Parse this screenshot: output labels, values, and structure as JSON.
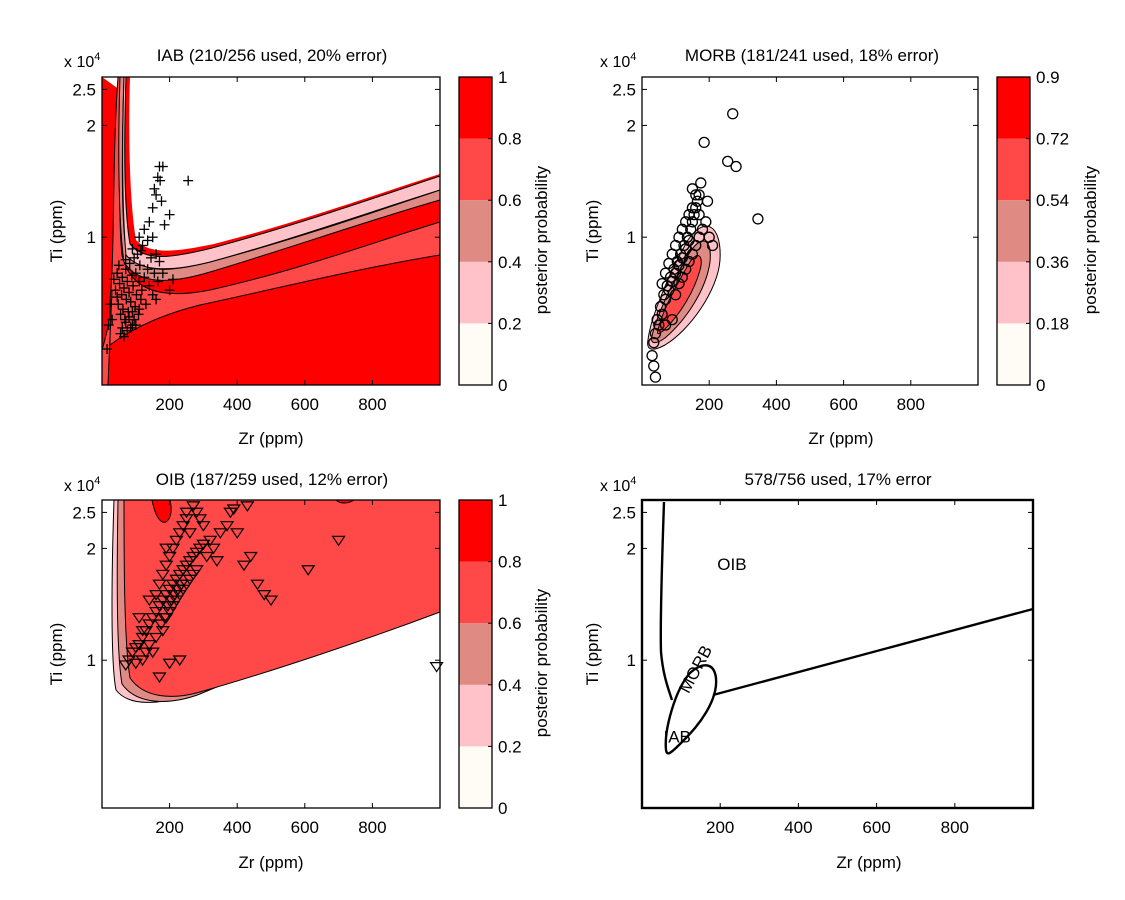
{
  "figure": {
    "background": "#ffffff"
  },
  "colors": {
    "bins": [
      "#fffbf5",
      "#ffc2c8",
      "#e08a84",
      "#ff4848",
      "#ff0000"
    ],
    "line": "#000000"
  },
  "chart_data": [
    {
      "type": "contour",
      "title": "IAB (210/256 used, 20% error)",
      "xlabel": "Zr (ppm)",
      "ylabel": "Ti (ppm)",
      "y_exponent_label": "x 10",
      "y_exponent": "4",
      "xlim": [
        0,
        1000
      ],
      "ylim": [
        0.4,
        2.7
      ],
      "xticks": [
        {
          "value": 200,
          "label": "200"
        },
        {
          "value": 400,
          "label": "400"
        },
        {
          "value": 600,
          "label": "600"
        },
        {
          "value": 800,
          "label": "800"
        }
      ],
      "yticks": [
        {
          "value": 1,
          "label": "1"
        },
        {
          "value": 2,
          "label": "2"
        },
        {
          "value": 2.5,
          "label": "2.5"
        }
      ],
      "colorbar": {
        "label": "posterior probability",
        "ticks": [
          "0",
          "0.2",
          "0.4",
          "0.6",
          "0.8",
          "1"
        ]
      },
      "marker": "plus",
      "points": [
        [
          40,
          0.72
        ],
        [
          45,
          0.69
        ],
        [
          48,
          0.66
        ],
        [
          52,
          0.75
        ],
        [
          55,
          0.62
        ],
        [
          58,
          0.7
        ],
        [
          60,
          0.78
        ],
        [
          62,
          0.64
        ],
        [
          65,
          0.73
        ],
        [
          68,
          0.6
        ],
        [
          70,
          0.82
        ],
        [
          72,
          0.68
        ],
        [
          75,
          0.76
        ],
        [
          78,
          0.63
        ],
        [
          80,
          0.71
        ],
        [
          82,
          0.85
        ],
        [
          85,
          0.67
        ],
        [
          88,
          0.79
        ],
        [
          90,
          0.58
        ],
        [
          92,
          0.74
        ],
        [
          95,
          0.88
        ],
        [
          98,
          0.65
        ],
        [
          100,
          0.8
        ],
        [
          102,
          0.7
        ],
        [
          105,
          0.9
        ],
        [
          108,
          0.62
        ],
        [
          110,
          0.76
        ],
        [
          112,
          0.84
        ],
        [
          115,
          0.68
        ],
        [
          118,
          0.72
        ],
        [
          120,
          0.95
        ],
        [
          125,
          0.78
        ],
        [
          130,
          0.66
        ],
        [
          135,
          0.82
        ],
        [
          140,
          0.74
        ],
        [
          145,
          0.88
        ],
        [
          150,
          0.7
        ],
        [
          155,
          0.8
        ],
        [
          160,
          0.68
        ],
        [
          165,
          0.76
        ],
        [
          170,
          0.86
        ],
        [
          55,
          0.55
        ],
        [
          60,
          0.57
        ],
        [
          65,
          0.54
        ],
        [
          70,
          0.59
        ],
        [
          75,
          0.56
        ],
        [
          80,
          0.61
        ],
        [
          85,
          0.57
        ],
        [
          90,
          0.63
        ],
        [
          95,
          0.6
        ],
        [
          100,
          0.58
        ],
        [
          110,
          0.64
        ],
        [
          30,
          0.6
        ],
        [
          20,
          0.58
        ],
        [
          15,
          0.5
        ],
        [
          25,
          0.66
        ],
        [
          35,
          0.77
        ],
        [
          45,
          0.8
        ],
        [
          50,
          0.84
        ],
        [
          70,
          0.87
        ],
        [
          90,
          0.93
        ],
        [
          110,
          1.0
        ],
        [
          125,
          1.05
        ],
        [
          140,
          1.1
        ],
        [
          150,
          1.0
        ],
        [
          160,
          0.9
        ],
        [
          180,
          0.8
        ],
        [
          200,
          0.72
        ],
        [
          210,
          0.77
        ],
        [
          155,
          1.35
        ],
        [
          160,
          1.3
        ],
        [
          165,
          1.45
        ],
        [
          170,
          1.55
        ],
        [
          180,
          1.55
        ],
        [
          172,
          1.42
        ],
        [
          176,
          1.25
        ],
        [
          200,
          1.15
        ],
        [
          255,
          1.42
        ],
        [
          150,
          1.2
        ],
        [
          185,
          1.08
        ],
        [
          135,
          0.98
        ],
        [
          115,
          0.92
        ]
      ]
    },
    {
      "type": "contour",
      "title": "MORB (181/241 used, 18% error)",
      "xlabel": "Zr (ppm)",
      "ylabel": "Ti (ppm)",
      "y_exponent_label": "x 10",
      "y_exponent": "4",
      "xlim": [
        0,
        1000
      ],
      "ylim": [
        0.4,
        2.7
      ],
      "xticks": [
        {
          "value": 200,
          "label": "200"
        },
        {
          "value": 400,
          "label": "400"
        },
        {
          "value": 600,
          "label": "600"
        },
        {
          "value": 800,
          "label": "800"
        }
      ],
      "yticks": [
        {
          "value": 1,
          "label": "1"
        },
        {
          "value": 2,
          "label": "2"
        },
        {
          "value": 2.5,
          "label": "2.5"
        }
      ],
      "colorbar": {
        "label": "posterior probability",
        "ticks": [
          "0",
          "0.18",
          "0.36",
          "0.54",
          "0.72",
          "0.9"
        ]
      },
      "marker": "circle",
      "points": [
        [
          30,
          0.48
        ],
        [
          35,
          0.52
        ],
        [
          40,
          0.55
        ],
        [
          45,
          0.6
        ],
        [
          50,
          0.58
        ],
        [
          55,
          0.65
        ],
        [
          60,
          0.62
        ],
        [
          65,
          0.7
        ],
        [
          70,
          0.68
        ],
        [
          75,
          0.74
        ],
        [
          80,
          0.72
        ],
        [
          85,
          0.78
        ],
        [
          90,
          0.76
        ],
        [
          95,
          0.82
        ],
        [
          100,
          0.8
        ],
        [
          105,
          0.86
        ],
        [
          110,
          0.84
        ],
        [
          115,
          0.9
        ],
        [
          120,
          0.88
        ],
        [
          125,
          0.95
        ],
        [
          130,
          0.93
        ],
        [
          135,
          1.0
        ],
        [
          140,
          0.98
        ],
        [
          145,
          1.05
        ],
        [
          150,
          1.1
        ],
        [
          155,
          1.15
        ],
        [
          160,
          1.2
        ],
        [
          165,
          1.25
        ],
        [
          170,
          1.3
        ],
        [
          60,
          0.75
        ],
        [
          70,
          0.8
        ],
        [
          80,
          0.85
        ],
        [
          90,
          0.9
        ],
        [
          100,
          0.95
        ],
        [
          110,
          1.0
        ],
        [
          120,
          1.05
        ],
        [
          130,
          1.1
        ],
        [
          140,
          1.15
        ],
        [
          150,
          1.2
        ],
        [
          160,
          1.3
        ],
        [
          100,
          0.7
        ],
        [
          110,
          0.75
        ],
        [
          120,
          0.78
        ],
        [
          130,
          0.82
        ],
        [
          140,
          0.86
        ],
        [
          150,
          0.9
        ],
        [
          160,
          0.95
        ],
        [
          170,
          1.0
        ],
        [
          180,
          1.05
        ],
        [
          190,
          1.1
        ],
        [
          200,
          1.0
        ],
        [
          210,
          0.95
        ],
        [
          195,
          1.25
        ],
        [
          175,
          1.4
        ],
        [
          185,
          1.8
        ],
        [
          255,
          1.6
        ],
        [
          270,
          2.15
        ],
        [
          280,
          1.55
        ],
        [
          345,
          1.12
        ],
        [
          35,
          0.45
        ],
        [
          40,
          0.42
        ],
        [
          70,
          0.58
        ],
        [
          90,
          0.6
        ],
        [
          170,
          1.15
        ],
        [
          150,
          1.35
        ]
      ]
    },
    {
      "type": "contour",
      "title": "OIB (187/259 used, 12% error)",
      "xlabel": "Zr (ppm)",
      "ylabel": "Ti (ppm)",
      "y_exponent_label": "x 10",
      "y_exponent": "4",
      "xlim": [
        0,
        1000
      ],
      "ylim": [
        0.4,
        2.7
      ],
      "xticks": [
        {
          "value": 200,
          "label": "200"
        },
        {
          "value": 400,
          "label": "400"
        },
        {
          "value": 600,
          "label": "600"
        },
        {
          "value": 800,
          "label": "800"
        }
      ],
      "yticks": [
        {
          "value": 1,
          "label": "1"
        },
        {
          "value": 2,
          "label": "2"
        },
        {
          "value": 2.5,
          "label": "2.5"
        }
      ],
      "colorbar": {
        "label": "posterior probability",
        "ticks": [
          "0",
          "0.2",
          "0.4",
          "0.6",
          "0.8",
          "1"
        ]
      },
      "marker": "triangle-down",
      "points": [
        [
          70,
          0.97
        ],
        [
          80,
          1.0
        ],
        [
          90,
          1.05
        ],
        [
          100,
          1.08
        ],
        [
          110,
          1.1
        ],
        [
          120,
          1.15
        ],
        [
          130,
          1.2
        ],
        [
          140,
          1.25
        ],
        [
          150,
          1.3
        ],
        [
          160,
          1.35
        ],
        [
          170,
          1.4
        ],
        [
          180,
          1.45
        ],
        [
          190,
          1.5
        ],
        [
          200,
          1.55
        ],
        [
          210,
          1.6
        ],
        [
          220,
          1.65
        ],
        [
          230,
          1.7
        ],
        [
          240,
          1.75
        ],
        [
          250,
          1.8
        ],
        [
          260,
          1.85
        ],
        [
          270,
          1.9
        ],
        [
          280,
          1.95
        ],
        [
          290,
          2.0
        ],
        [
          300,
          2.05
        ],
        [
          160,
          1.5
        ],
        [
          170,
          1.6
        ],
        [
          180,
          1.7
        ],
        [
          190,
          1.8
        ],
        [
          200,
          1.9
        ],
        [
          210,
          2.0
        ],
        [
          220,
          2.1
        ],
        [
          230,
          2.2
        ],
        [
          240,
          2.3
        ],
        [
          250,
          2.4
        ],
        [
          180,
          1.2
        ],
        [
          190,
          1.3
        ],
        [
          200,
          1.35
        ],
        [
          210,
          1.4
        ],
        [
          220,
          1.45
        ],
        [
          230,
          1.5
        ],
        [
          240,
          1.55
        ],
        [
          250,
          1.6
        ],
        [
          260,
          1.65
        ],
        [
          270,
          1.7
        ],
        [
          280,
          1.75
        ],
        [
          150,
          1.05
        ],
        [
          130,
          1.05
        ],
        [
          120,
          1.0
        ],
        [
          100,
          0.98
        ],
        [
          140,
          1.1
        ],
        [
          160,
          1.15
        ],
        [
          175,
          1.25
        ],
        [
          185,
          1.3
        ],
        [
          195,
          1.4
        ],
        [
          205,
          1.45
        ],
        [
          215,
          1.5
        ],
        [
          225,
          1.55
        ],
        [
          235,
          1.6
        ],
        [
          310,
          1.9
        ],
        [
          320,
          2.1
        ],
        [
          330,
          2.0
        ],
        [
          340,
          1.85
        ],
        [
          350,
          2.2
        ],
        [
          370,
          2.3
        ],
        [
          380,
          2.5
        ],
        [
          390,
          2.55
        ],
        [
          300,
          2.3
        ],
        [
          290,
          2.4
        ],
        [
          280,
          2.5
        ],
        [
          260,
          2.2
        ],
        [
          250,
          2.5
        ],
        [
          270,
          2.6
        ],
        [
          430,
          2.6
        ],
        [
          400,
          2.2
        ],
        [
          420,
          1.8
        ],
        [
          440,
          1.9
        ],
        [
          460,
          1.6
        ],
        [
          480,
          1.5
        ],
        [
          500,
          1.45
        ],
        [
          610,
          1.75
        ],
        [
          700,
          2.1
        ],
        [
          990,
          0.96
        ],
        [
          200,
          0.98
        ],
        [
          230,
          1.0
        ],
        [
          170,
          0.9
        ],
        [
          120,
          1.2
        ],
        [
          110,
          1.3
        ],
        [
          140,
          1.45
        ],
        [
          190,
          2.0
        ]
      ]
    },
    {
      "type": "decision-boundary",
      "title": "578/756 used, 17% error",
      "xlabel": "Zr (ppm)",
      "ylabel": "Ti (ppm)",
      "y_exponent_label": "x 10",
      "y_exponent": "4",
      "xlim": [
        0,
        1000
      ],
      "ylim": [
        0.4,
        2.7
      ],
      "xticks": [
        {
          "value": 200,
          "label": "200"
        },
        {
          "value": 400,
          "label": "400"
        },
        {
          "value": 600,
          "label": "600"
        },
        {
          "value": 800,
          "label": "800"
        }
      ],
      "yticks": [
        {
          "value": 1,
          "label": "1"
        },
        {
          "value": 2,
          "label": "2"
        },
        {
          "value": 2.5,
          "label": "2.5"
        }
      ],
      "region_labels": [
        {
          "text": "OIB",
          "x": 230,
          "y": 1.75,
          "rotate": 0
        },
        {
          "text": "MORB",
          "x": 150,
          "y": 0.93,
          "rotate": -62
        },
        {
          "text": "IAB",
          "x": 90,
          "y": 0.6,
          "rotate": 0
        }
      ]
    }
  ]
}
